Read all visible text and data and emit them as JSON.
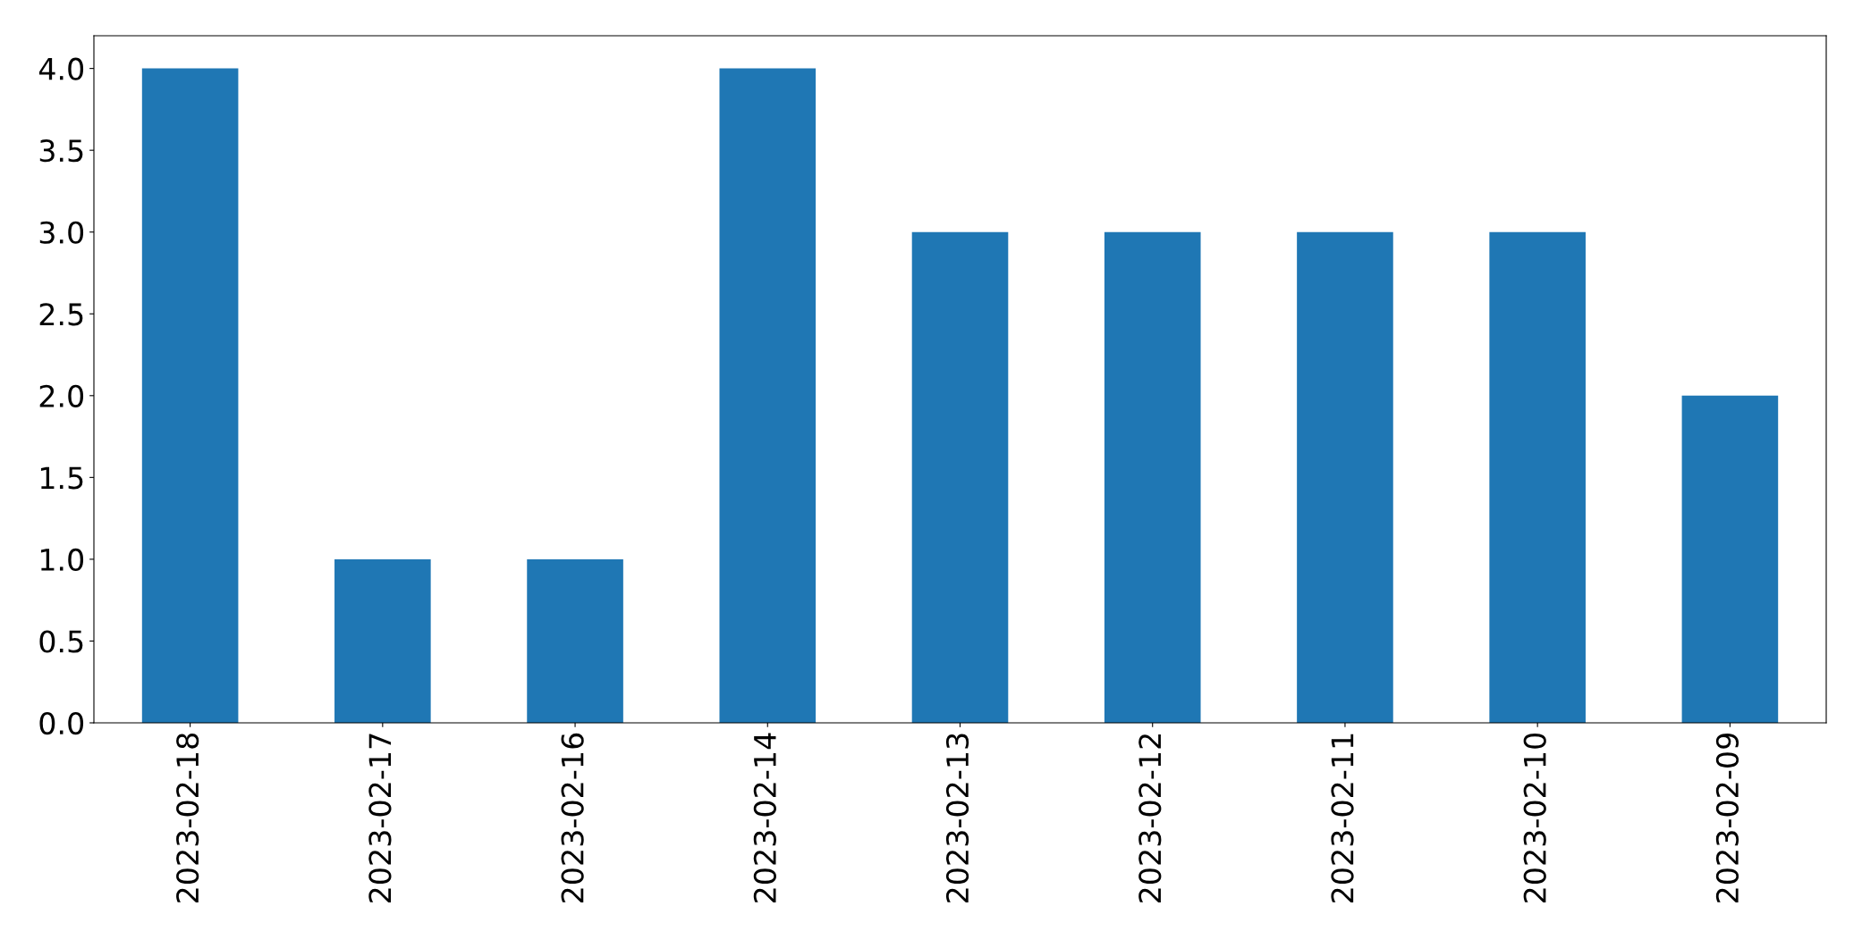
{
  "chart_data": {
    "type": "bar",
    "categories": [
      "2023-02-18",
      "2023-02-17",
      "2023-02-16",
      "2023-02-14",
      "2023-02-13",
      "2023-02-12",
      "2023-02-11",
      "2023-02-10",
      "2023-02-09"
    ],
    "values": [
      4,
      1,
      1,
      4,
      3,
      3,
      3,
      3,
      2
    ],
    "color": "#1f77b4",
    "ylim": [
      0,
      4.2
    ],
    "yticks": [
      {
        "value": 0,
        "label": "0.0"
      },
      {
        "value": 0.5,
        "label": "0.5"
      },
      {
        "value": 1,
        "label": "1.0"
      },
      {
        "value": 1.5,
        "label": "1.5"
      },
      {
        "value": 2,
        "label": "2.0"
      },
      {
        "value": 2.5,
        "label": "2.5"
      },
      {
        "value": 3,
        "label": "3.0"
      },
      {
        "value": 3.5,
        "label": "3.5"
      },
      {
        "value": 4,
        "label": "4.0"
      }
    ],
    "grid": false,
    "legend": false
  }
}
